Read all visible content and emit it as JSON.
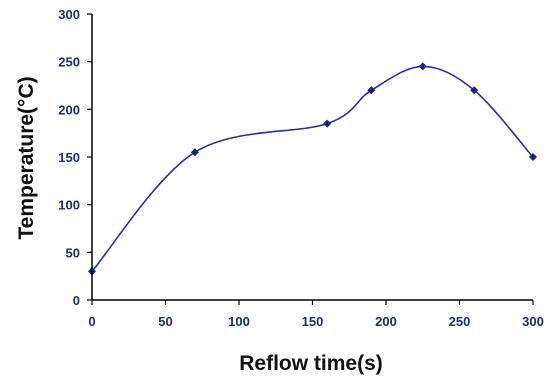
{
  "chart_data": {
    "type": "line",
    "smooth": true,
    "x": [
      0,
      70,
      160,
      190,
      225,
      260,
      300
    ],
    "series": [
      {
        "values": [
          30,
          155,
          185,
          220,
          245,
          220,
          150
        ]
      }
    ],
    "xlabel": "Reflow time(s)",
    "ylabel": "Temperature(°C)",
    "xlim": [
      0,
      300
    ],
    "ylim": [
      0,
      300
    ],
    "xticks": [
      "0",
      "50",
      "100",
      "150",
      "200",
      "250",
      "300"
    ],
    "yticks": [
      "0",
      "50",
      "100",
      "150",
      "200",
      "250",
      "300"
    ],
    "grid": false,
    "legend": "none",
    "colors": {
      "line": "#2a2f9a",
      "marker": "#1a237e",
      "tick_text": "#1f2d7a",
      "axis": "#000000"
    }
  }
}
